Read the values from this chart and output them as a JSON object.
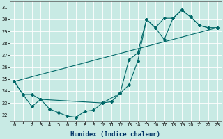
{
  "xlabel": "Humidex (Indice chaleur)",
  "background_color": "#c8eae4",
  "grid_color": "#ffffff",
  "line_color": "#006868",
  "xlim": [
    -0.5,
    23.5
  ],
  "ylim": [
    21.5,
    31.5
  ],
  "xticks": [
    0,
    1,
    2,
    3,
    4,
    5,
    6,
    7,
    8,
    9,
    10,
    11,
    12,
    13,
    14,
    15,
    16,
    17,
    18,
    19,
    20,
    21,
    22,
    23
  ],
  "yticks": [
    22,
    23,
    24,
    25,
    26,
    27,
    28,
    29,
    30,
    31
  ],
  "line1_x": [
    0,
    1,
    2,
    3,
    4,
    5,
    6,
    7,
    8,
    9,
    10,
    11,
    12,
    13,
    14,
    15,
    16,
    17,
    18,
    19,
    20,
    21,
    22,
    23
  ],
  "line1_y": [
    24.8,
    23.7,
    22.7,
    23.3,
    22.5,
    22.2,
    21.9,
    21.8,
    22.3,
    22.4,
    23.0,
    23.1,
    23.8,
    24.5,
    26.5,
    30.0,
    29.3,
    28.3,
    30.1,
    30.8,
    30.2,
    29.5,
    29.3,
    29.3
  ],
  "line2_x": [
    0,
    1,
    2,
    3,
    10,
    12,
    13,
    14,
    15,
    16,
    17,
    18,
    19,
    20,
    21,
    22,
    23
  ],
  "line2_y": [
    24.8,
    23.7,
    23.7,
    23.3,
    23.0,
    23.8,
    26.6,
    27.2,
    30.0,
    29.3,
    30.1,
    30.1,
    30.8,
    30.2,
    29.5,
    29.3,
    29.3
  ],
  "line3_x": [
    0,
    23
  ],
  "line3_y": [
    24.8,
    29.3
  ],
  "marker": "D",
  "markersize": 2.0,
  "linewidth": 0.8,
  "tick_fontsize": 5.0,
  "xlabel_fontsize": 6.5
}
